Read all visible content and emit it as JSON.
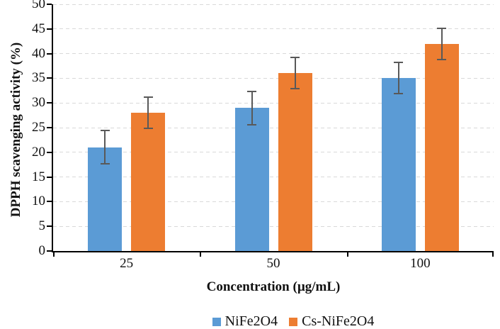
{
  "chart_data": {
    "type": "bar",
    "title": "",
    "categories": [
      "25",
      "50",
      "100"
    ],
    "series": [
      {
        "name": "NiFe2O4",
        "color": "#5B9BD5",
        "values": [
          21,
          29,
          35
        ],
        "errors": [
          3.5,
          3.5,
          3.3
        ]
      },
      {
        "name": "Cs-NiFe2O4",
        "color": "#ED7D31",
        "values": [
          28,
          36,
          42
        ],
        "errors": [
          3.3,
          3.3,
          3.3
        ]
      }
    ],
    "xlabel": "Concentration (µg/mL)",
    "ylabel": "DPPH scavenging activity (%)",
    "ylim": [
      0,
      50
    ],
    "yticks": [
      0,
      5,
      10,
      15,
      20,
      25,
      30,
      35,
      40,
      45,
      50
    ],
    "grid": "dashed-horizontal",
    "legend_position": "bottom-center"
  },
  "colors": {
    "grid": "#d9d9d9",
    "axis": "#000000",
    "error_bar": "#595959",
    "background": "#ffffff"
  }
}
